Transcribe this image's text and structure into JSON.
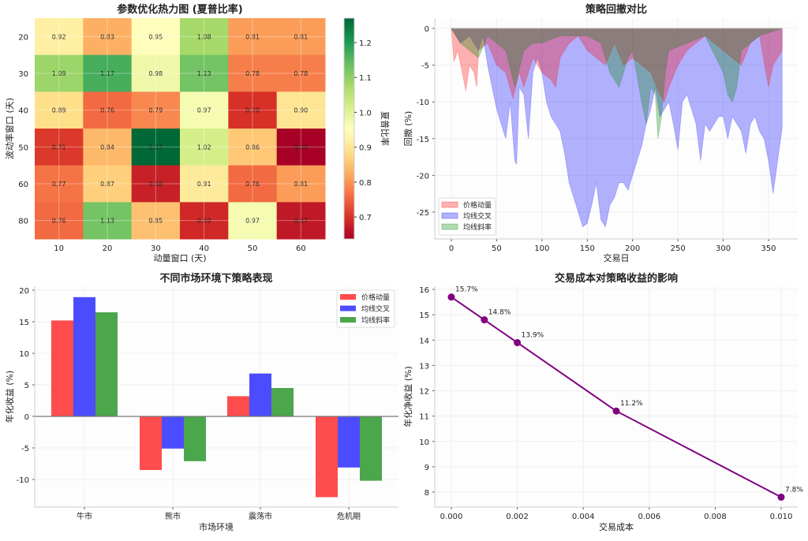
{
  "chart_data": [
    {
      "type": "heatmap",
      "title": "参数优化热力图 (夏普比率)",
      "xlabel": "动量窗口 (天)",
      "ylabel": "波动率窗口 (天)",
      "x_categories": [
        "10",
        "20",
        "30",
        "40",
        "50",
        "60"
      ],
      "y_categories": [
        "20",
        "30",
        "40",
        "50",
        "60",
        "80"
      ],
      "values": [
        [
          0.92,
          0.83,
          0.95,
          1.08,
          0.81,
          0.81
        ],
        [
          1.09,
          1.17,
          0.98,
          1.13,
          0.78,
          0.78
        ],
        [
          0.89,
          0.76,
          0.79,
          0.97,
          0.7,
          0.9
        ],
        [
          0.71,
          0.84,
          1.27,
          1.02,
          0.86,
          0.64
        ],
        [
          0.77,
          0.87,
          0.68,
          0.91,
          0.76,
          0.81
        ],
        [
          0.76,
          1.13,
          0.85,
          0.69,
          0.97,
          0.67
        ]
      ],
      "colorbar": {
        "label": "夏普比率",
        "range": [
          0.637,
          1.27
        ],
        "ticks": [
          "0.7",
          "0.8",
          "0.9",
          "1.0",
          "1.1",
          "1.2"
        ],
        "colormap": "RdYlGn"
      }
    },
    {
      "type": "area",
      "title": "策略回撤对比",
      "xlabel": "交易日",
      "ylabel": "回撤 (%)",
      "xlim": [
        -18,
        383
      ],
      "ylim": [
        -28.5,
        1.3
      ],
      "xticks": [
        0,
        50,
        100,
        150,
        200,
        250,
        300,
        350
      ],
      "yticks": [
        0,
        -5,
        -10,
        -15,
        -20,
        -25
      ],
      "legend": "lower-left",
      "series": [
        {
          "name": "均线交叉",
          "color": "#0000ff",
          "x": [
            0,
            5,
            10,
            20,
            30,
            35,
            40,
            45,
            50,
            55,
            60,
            65,
            70,
            72,
            75,
            80,
            85,
            90,
            95,
            100,
            105,
            110,
            115,
            120,
            125,
            130,
            135,
            140,
            145,
            150,
            155,
            160,
            165,
            170,
            175,
            180,
            185,
            190,
            195,
            200,
            205,
            210,
            215,
            220,
            225,
            230,
            235,
            240,
            245,
            250,
            255,
            260,
            265,
            270,
            275,
            280,
            285,
            290,
            295,
            300,
            305,
            310,
            315,
            320,
            325,
            330,
            335,
            340,
            345,
            350,
            355,
            360,
            365
          ],
          "y": [
            0,
            -1,
            -2,
            -1,
            -3,
            -1,
            -5,
            -8,
            -11,
            -13,
            -15,
            -10,
            -18,
            -18.5,
            -8,
            -9,
            -15,
            -6,
            -4,
            -6,
            -10,
            -12,
            -13,
            -14,
            -17,
            -21,
            -23,
            -25,
            -27,
            -26.5,
            -24,
            -21,
            -26,
            -27,
            -24,
            -23,
            -21,
            -21,
            -22,
            -20,
            -18,
            -16,
            -13,
            -11,
            -8,
            -12,
            -11,
            -10,
            -13,
            -16.5,
            -10,
            -9,
            -11,
            -13,
            -18,
            -13,
            -14,
            -13,
            -12,
            -12,
            -15,
            -12,
            -13,
            -14,
            -17,
            -13,
            -12,
            -14,
            -15,
            -18,
            -22.5,
            -18,
            -13.5
          ]
        },
        {
          "name": "价格动量",
          "color": "#ff0000",
          "x": [
            0,
            3,
            7,
            12,
            16,
            20,
            25,
            28,
            30,
            40,
            50,
            60,
            68,
            75,
            80,
            90,
            100,
            110,
            115,
            120,
            130,
            140,
            150,
            160,
            170,
            180,
            190,
            200,
            210,
            220,
            230,
            235,
            240,
            250,
            260,
            270,
            280,
            290,
            300,
            310,
            320,
            330,
            340,
            350,
            355,
            360,
            365
          ],
          "y": [
            0,
            -4.5,
            -3,
            -6,
            -8.5,
            -5,
            -6,
            -8,
            -3,
            -2,
            -5,
            -6,
            -9.5,
            -6,
            -8,
            -4,
            -6,
            -7,
            -8,
            -4,
            -2,
            -1,
            -3,
            -4,
            -5,
            -2,
            -5,
            -4,
            -5,
            -6,
            -9,
            -10,
            -8,
            -5,
            -3,
            -2,
            -1,
            -2,
            -3,
            -4,
            -5,
            -2,
            -1,
            -8,
            -5,
            -4,
            -3
          ]
        },
        {
          "name": "均线斜率",
          "color": "#008000",
          "x": [
            0,
            10,
            20,
            30,
            40,
            50,
            60,
            70,
            80,
            90,
            100,
            120,
            150,
            165,
            175,
            185,
            195,
            200,
            210,
            215,
            220,
            225,
            228,
            232,
            236,
            240,
            260,
            280,
            300,
            305,
            310,
            315,
            320,
            340,
            365
          ],
          "y": [
            0,
            -2,
            -3,
            -4,
            -1,
            -2,
            -3,
            -8,
            -3,
            -2,
            -2,
            -1,
            -1,
            -2,
            -6,
            -8,
            -4,
            -3,
            -10,
            -13,
            -8,
            -9,
            -15,
            -12,
            -6,
            -3,
            -2,
            -1,
            -6,
            -9,
            -10,
            -8,
            -3,
            -1,
            0
          ]
        }
      ]
    },
    {
      "type": "bar",
      "title": "不同市场环境下策略表现",
      "xlabel": "市场环境",
      "ylabel": "年化收益 (%)",
      "categories": [
        "牛市",
        "熊市",
        "震荡市",
        "危机期"
      ],
      "ylim": [
        -14.5,
        20.7
      ],
      "yticks": [
        20,
        15,
        10,
        5,
        0,
        -5,
        -10
      ],
      "legend": "top-right",
      "series": [
        {
          "name": "价格动量",
          "color": "#ff4c4c",
          "values": [
            15.2,
            -8.5,
            3.2,
            -12.8
          ]
        },
        {
          "name": "均线交叉",
          "color": "#4c4cff",
          "values": [
            18.9,
            -5.1,
            6.8,
            -8.1
          ]
        },
        {
          "name": "均线斜率",
          "color": "#4ca64c",
          "values": [
            16.5,
            -7.1,
            4.5,
            -10.2
          ]
        }
      ]
    },
    {
      "type": "line",
      "title": "交易成本对策略收益的影响",
      "xlabel": "交易成本",
      "ylabel": "年化净收益 (%)",
      "x": [
        0.0,
        0.001,
        0.002,
        0.005,
        0.01
      ],
      "y": [
        15.7,
        14.8,
        13.9,
        11.2,
        7.8
      ],
      "labels": [
        "15.7%",
        "14.8%",
        "13.9%",
        "11.2%",
        "7.8%"
      ],
      "color": "#800080",
      "xticks": [
        "0.000",
        "0.002",
        "0.004",
        "0.006",
        "0.008",
        "0.010"
      ],
      "yticks": [
        "16",
        "15",
        "14",
        "13",
        "12",
        "11",
        "10",
        "9",
        "8"
      ]
    }
  ]
}
